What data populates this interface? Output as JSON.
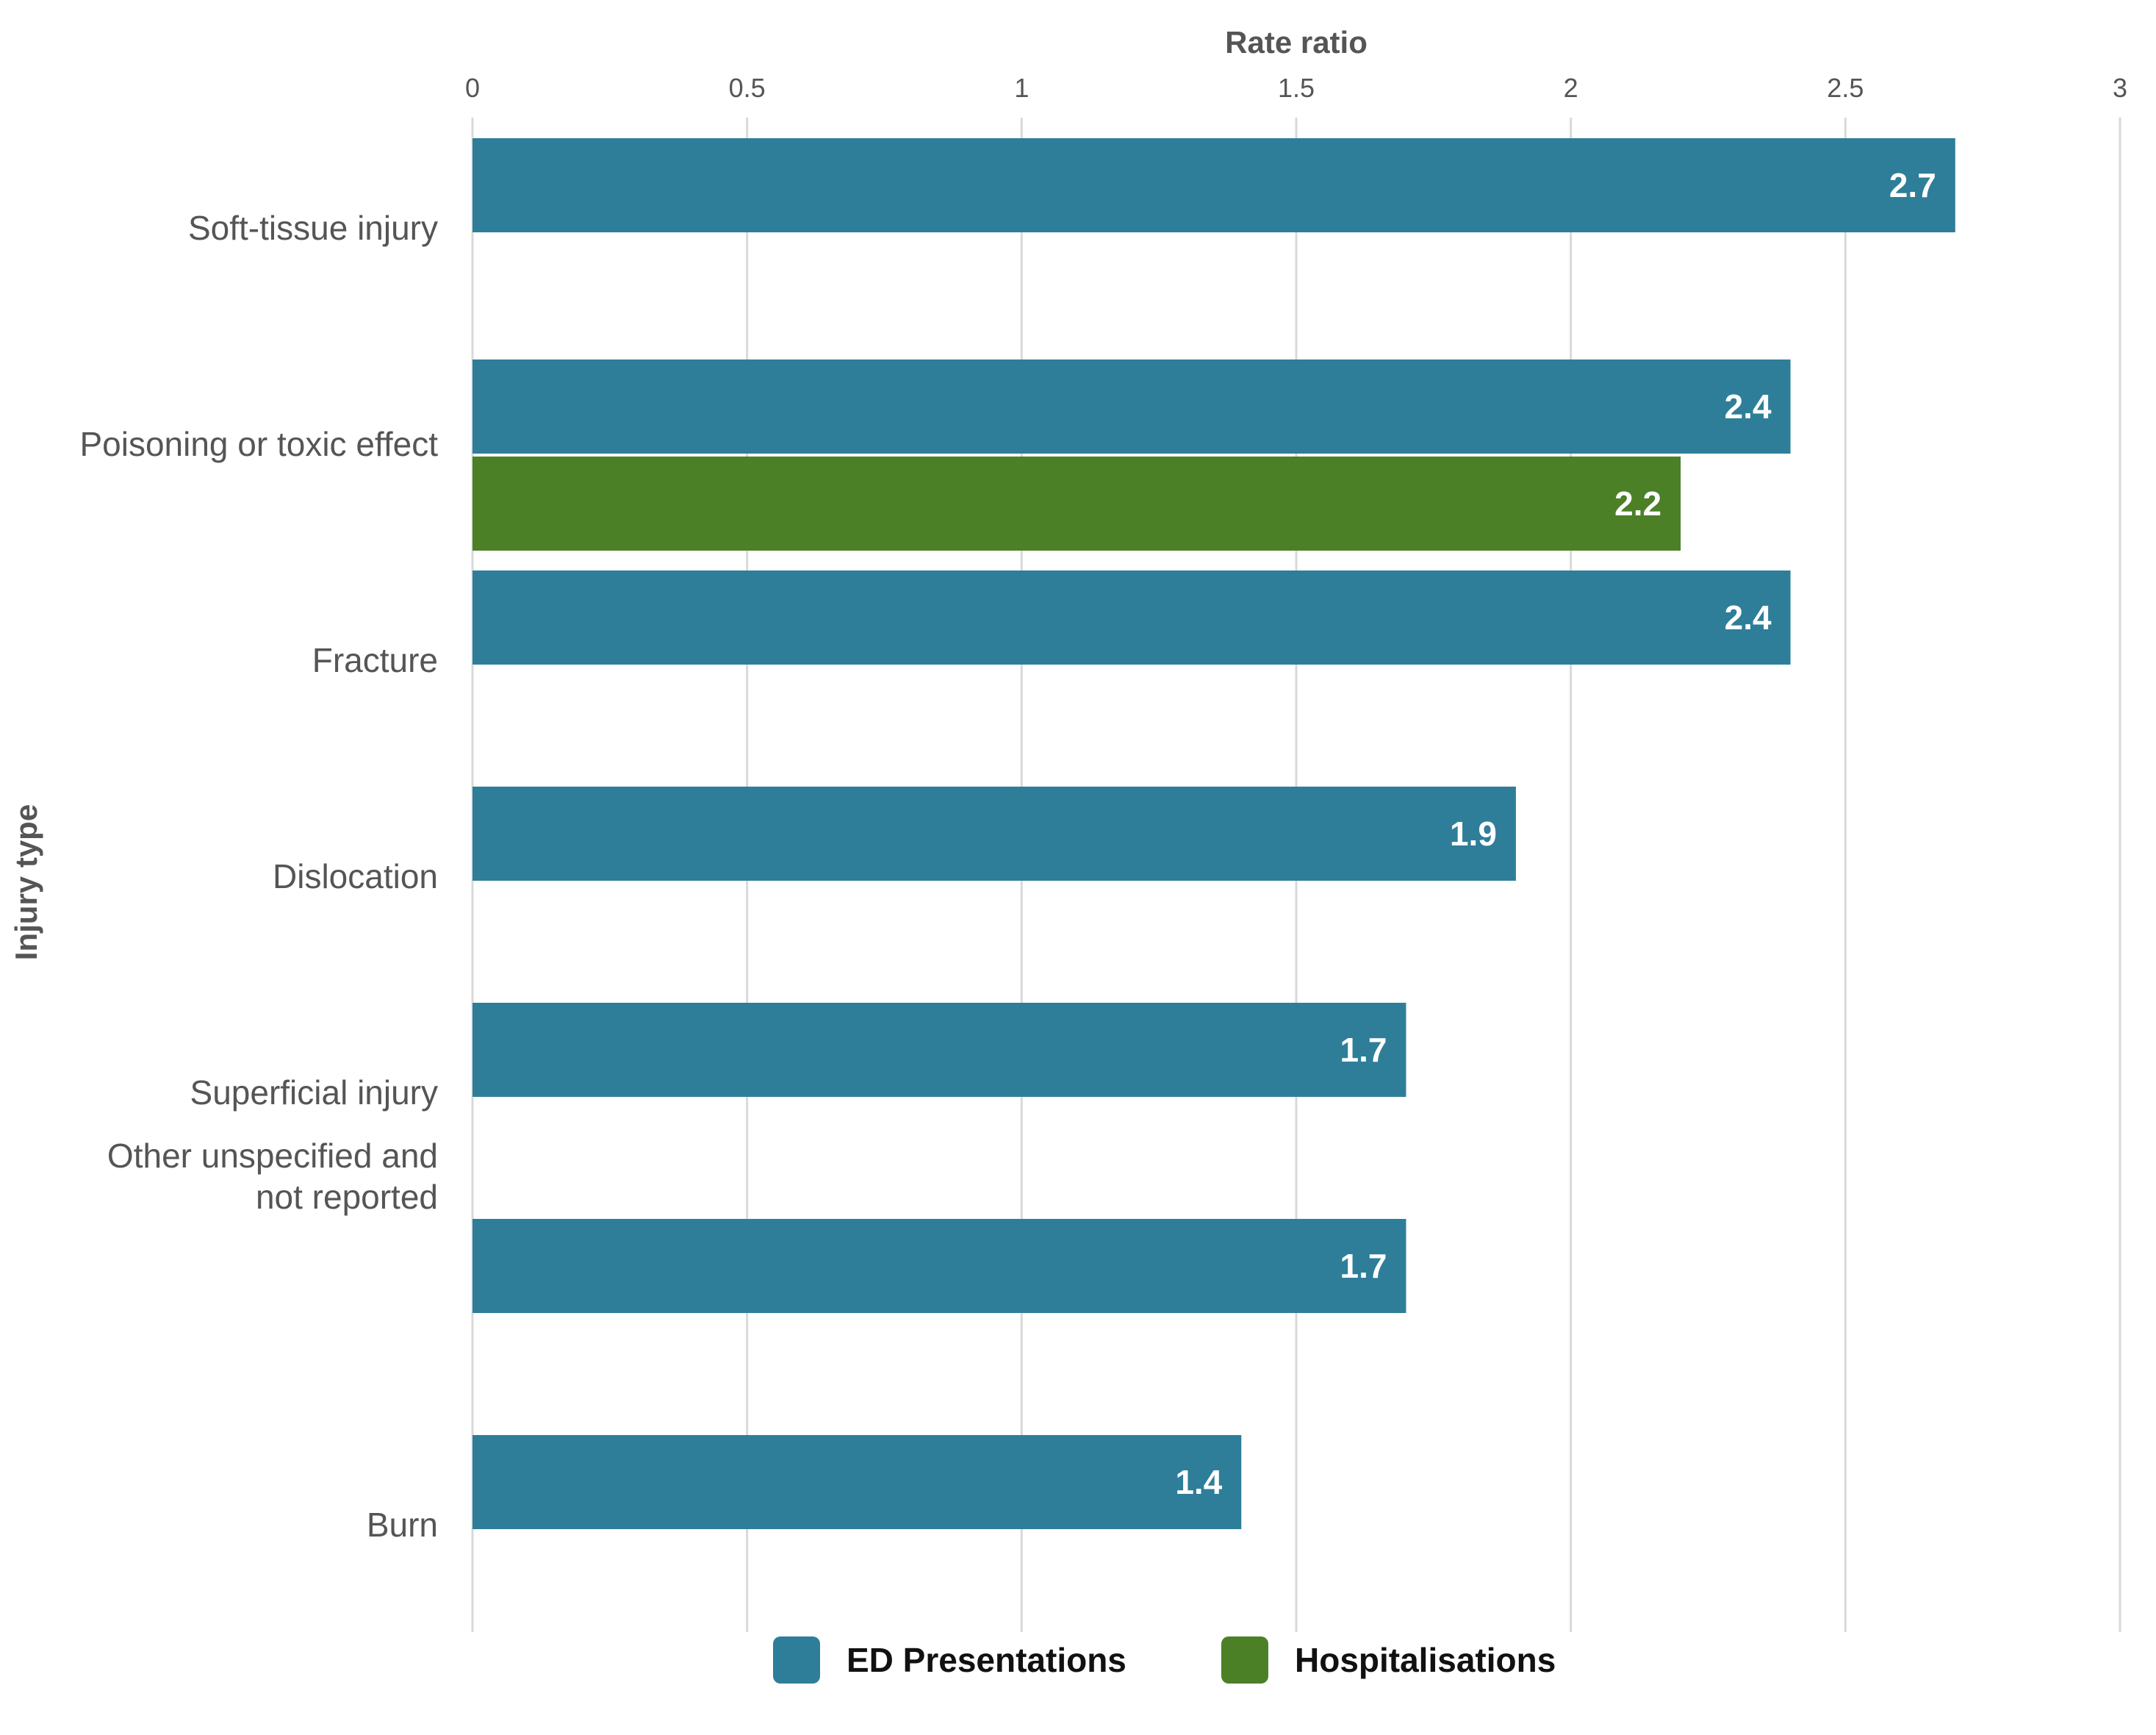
{
  "chart_data": {
    "type": "bar",
    "orientation": "horizontal",
    "xlabel": "Rate ratio",
    "ylabel": "Injury type",
    "xlim": [
      0,
      3
    ],
    "x_ticks": [
      "0",
      "0.5",
      "1",
      "1.5",
      "2",
      "2.5",
      "3"
    ],
    "grid": true,
    "legend_position": "bottom",
    "colors": {
      "ed": "#2e7e99",
      "hosp": "#4c8027"
    },
    "categories": [
      {
        "label": [
          "Soft-tissue injury"
        ]
      },
      {
        "label": [
          "Poisoning or toxic effect"
        ]
      },
      {
        "label": [
          "Fracture"
        ]
      },
      {
        "label": [
          "Dislocation"
        ]
      },
      {
        "label": [
          "Superficial injury"
        ]
      },
      {
        "label": [
          "Other unspecified and",
          "not reported"
        ]
      },
      {
        "label": [
          "Burn"
        ]
      }
    ],
    "series": [
      {
        "name": "ED Presentations",
        "color": "#2e7e99",
        "values": [
          2.7,
          2.4,
          2.4,
          1.9,
          1.7,
          1.7,
          1.4
        ],
        "labels": [
          "2.7",
          "2.4",
          "2.4",
          "1.9",
          "1.7",
          "1.7",
          "1.4"
        ]
      },
      {
        "name": "Hospitalisations",
        "color": "#4c8027",
        "values": [
          null,
          2.2,
          null,
          null,
          null,
          null,
          null
        ],
        "labels": [
          null,
          "2.2",
          null,
          null,
          null,
          null,
          null
        ]
      }
    ]
  }
}
